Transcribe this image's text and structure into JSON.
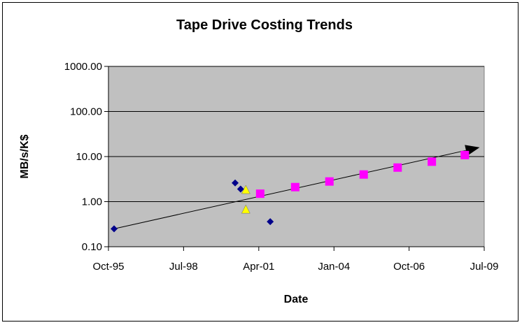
{
  "chart_data": {
    "type": "scatter",
    "title": "Tape Drive Costing Trends",
    "xlabel": "Date",
    "ylabel": "MB/s/K$",
    "x_ticks": [
      "Oct-95",
      "Jul-98",
      "Apr-01",
      "Jan-04",
      "Oct-06",
      "Jul-09"
    ],
    "y_ticks": [
      "0.10",
      "1.00",
      "10.00",
      "100.00",
      "1000.00"
    ],
    "x_range": [
      "1995-10-01",
      "2009-07-01"
    ],
    "y_range": [
      0.1,
      1000
    ],
    "y_scale": "log",
    "grid": "horizontal",
    "legend": "none",
    "plot_background": "#c0c0c0",
    "series": [
      {
        "marker": "diamond",
        "color": "#00008b",
        "points": [
          {
            "x": "1995-12-15",
            "y": 0.25
          },
          {
            "x": "2000-05-20",
            "y": 2.6
          },
          {
            "x": "2000-08-01",
            "y": 1.9
          },
          {
            "x": "2001-09-01",
            "y": 0.36
          }
        ]
      },
      {
        "marker": "triangle",
        "color": "#ffff00",
        "points": [
          {
            "x": "2000-10-10",
            "y": 1.8
          },
          {
            "x": "2000-10-10",
            "y": 0.66
          }
        ]
      },
      {
        "marker": "square",
        "color": "#ff00ff",
        "points": [
          {
            "x": "2001-04-20",
            "y": 1.5
          },
          {
            "x": "2002-08-01",
            "y": 2.1
          },
          {
            "x": "2003-11-01",
            "y": 2.8
          },
          {
            "x": "2005-02-01",
            "y": 4.0
          },
          {
            "x": "2006-05-01",
            "y": 5.7
          },
          {
            "x": "2007-08-01",
            "y": 7.7
          },
          {
            "x": "2008-10-15",
            "y": 10.8
          }
        ]
      }
    ],
    "trendline": {
      "from": {
        "x": "1995-12-15",
        "y": 0.25
      },
      "to": {
        "x": "2009-05-01",
        "y": 16
      },
      "arrow_head": true,
      "color": "#000000"
    }
  }
}
